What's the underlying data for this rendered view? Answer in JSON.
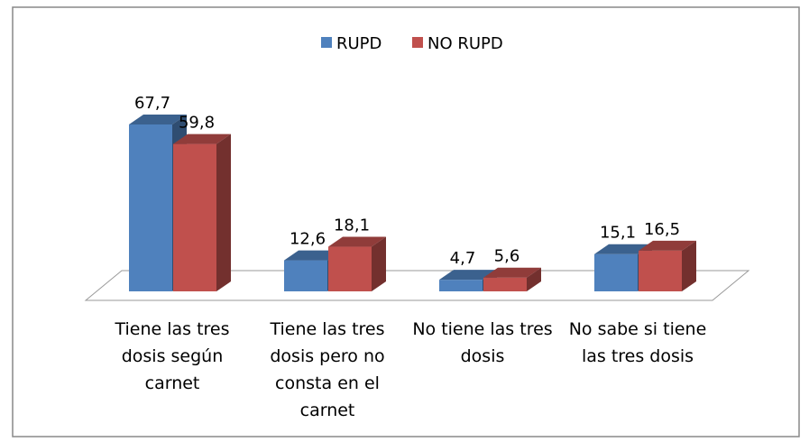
{
  "chart_data": {
    "type": "bar3d",
    "categories": [
      "Tiene las tres dosis según carnet",
      "Tiene las tres dosis pero no consta en el carnet",
      "No tiene las tres dosis",
      "No sabe si tiene las tres dosis"
    ],
    "series": [
      {
        "name": "RUPD",
        "color": "#4f81bd",
        "values": [
          67.7,
          12.6,
          4.7,
          15.1
        ],
        "value_labels": [
          "67,7",
          "12,6",
          "4,7",
          "15,1"
        ]
      },
      {
        "name": "NO RUPD",
        "color": "#c0504d",
        "values": [
          59.8,
          18.1,
          5.6,
          16.5
        ],
        "value_labels": [
          "59,8",
          "18,1",
          "5,6",
          "16,5"
        ]
      }
    ],
    "legend": "top"
  }
}
